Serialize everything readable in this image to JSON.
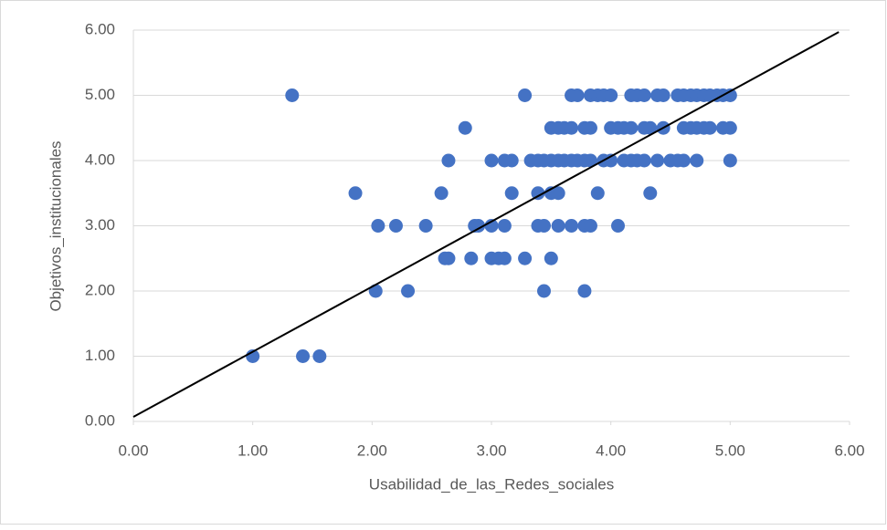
{
  "chart_data": {
    "type": "scatter",
    "xlabel": "Usabilidad_de_las_Redes_sociales",
    "ylabel": "Objetivos_institucionales",
    "color": "#4472c4",
    "x": [
      1.33,
      3.28,
      3.67,
      3.72,
      3.83,
      3.89,
      3.94,
      4.0,
      4.17,
      4.22,
      4.28,
      4.39,
      4.44,
      4.56,
      4.61,
      4.67,
      4.72,
      4.78,
      4.83,
      4.89,
      4.94,
      5.0,
      2.78,
      3.5,
      3.56,
      3.61,
      3.67,
      3.78,
      3.83,
      4.0,
      4.06,
      4.11,
      4.17,
      4.28,
      4.33,
      4.44,
      4.61,
      4.67,
      4.72,
      4.78,
      4.83,
      4.94,
      5.0,
      2.64,
      3.0,
      3.11,
      3.17,
      3.33,
      3.39,
      3.44,
      3.5,
      3.56,
      3.61,
      3.67,
      3.72,
      3.78,
      3.83,
      3.94,
      4.0,
      4.11,
      4.17,
      4.22,
      4.28,
      4.39,
      4.5,
      4.56,
      4.61,
      4.72,
      5.0,
      1.86,
      2.58,
      3.17,
      3.39,
      3.5,
      3.56,
      3.89,
      4.33,
      2.05,
      2.2,
      2.45,
      2.86,
      2.89,
      3.0,
      3.11,
      3.39,
      3.44,
      3.56,
      3.67,
      3.78,
      3.83,
      4.06,
      2.61,
      2.64,
      2.83,
      3.0,
      3.06,
      3.11,
      3.28,
      3.5,
      2.03,
      2.3,
      3.44,
      3.78,
      1.0,
      1.42,
      1.56
    ],
    "y": [
      5,
      5,
      5,
      5,
      5,
      5,
      5,
      5,
      5,
      5,
      5,
      5,
      5,
      5,
      5,
      5,
      5,
      5,
      5,
      5,
      5,
      5,
      4.5,
      4.5,
      4.5,
      4.5,
      4.5,
      4.5,
      4.5,
      4.5,
      4.5,
      4.5,
      4.5,
      4.5,
      4.5,
      4.5,
      4.5,
      4.5,
      4.5,
      4.5,
      4.5,
      4.5,
      4.5,
      4,
      4,
      4,
      4,
      4,
      4,
      4,
      4,
      4,
      4,
      4,
      4,
      4,
      4,
      4,
      4,
      4,
      4,
      4,
      4,
      4,
      4,
      4,
      4,
      4,
      4,
      3.5,
      3.5,
      3.5,
      3.5,
      3.5,
      3.5,
      3.5,
      3.5,
      3,
      3,
      3,
      3,
      3,
      3,
      3,
      3,
      3,
      3,
      3,
      3,
      3,
      3,
      2.5,
      2.5,
      2.5,
      2.5,
      2.5,
      2.5,
      2.5,
      2.5,
      2,
      2,
      2,
      2,
      1,
      1,
      1
    ],
    "trendline": {
      "x": [
        0,
        5.91
      ],
      "y": [
        0.07,
        5.97
      ],
      "color": "#000000"
    },
    "xlim": [
      0,
      6
    ],
    "ylim": [
      0,
      6
    ],
    "xticks": [
      {
        "value": 0,
        "label": "0.00"
      },
      {
        "value": 1,
        "label": "1.00"
      },
      {
        "value": 2,
        "label": "2.00"
      },
      {
        "value": 3,
        "label": "3.00"
      },
      {
        "value": 4,
        "label": "4.00"
      },
      {
        "value": 5,
        "label": "5.00"
      },
      {
        "value": 6,
        "label": "6.00"
      }
    ],
    "yticks": [
      {
        "value": 0,
        "label": "0.00"
      },
      {
        "value": 1,
        "label": "1.00"
      },
      {
        "value": 2,
        "label": "2.00"
      },
      {
        "value": 3,
        "label": "3.00"
      },
      {
        "value": 4,
        "label": "4.00"
      },
      {
        "value": 5,
        "label": "5.00"
      },
      {
        "value": 6,
        "label": "6.00"
      }
    ],
    "grid": true
  }
}
